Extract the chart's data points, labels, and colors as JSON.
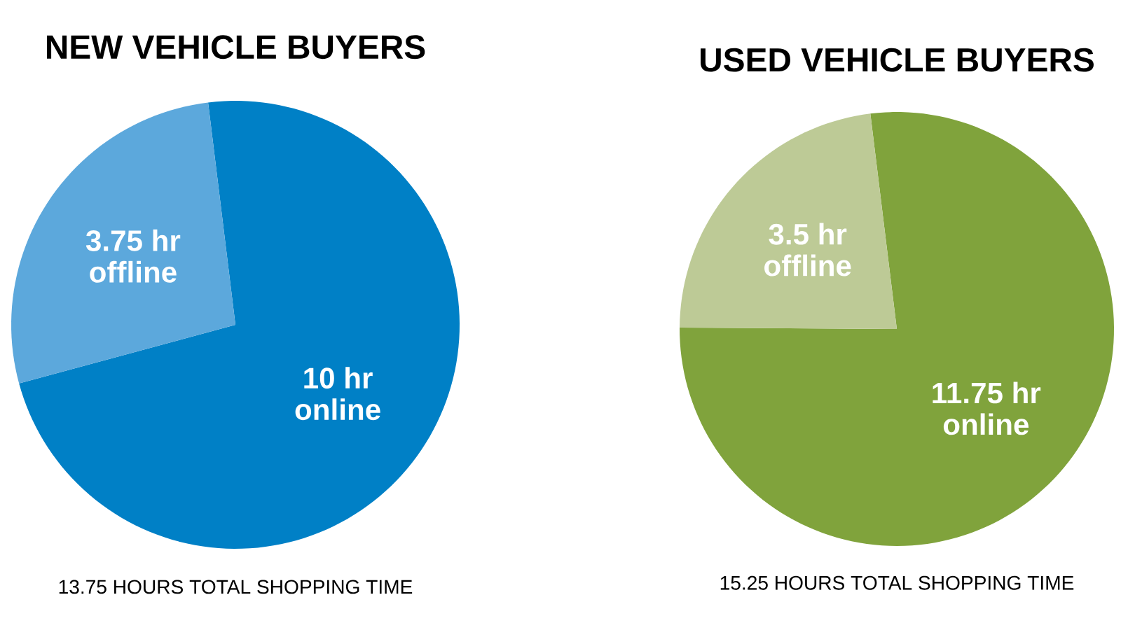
{
  "chart_data": [
    {
      "type": "pie",
      "title": "NEW VEHICLE BUYERS",
      "categories": [
        "online",
        "offline"
      ],
      "values": [
        10,
        3.75
      ],
      "value_labels": [
        "10 hr",
        "3.75 hr"
      ],
      "colors": [
        "#0080c6",
        "#5ca8dc"
      ],
      "annotations": [
        "13.75 HOURS TOTAL SHOPPING TIME"
      ]
    },
    {
      "type": "pie",
      "title": "USED VEHICLE BUYERS",
      "categories": [
        "online",
        "offline"
      ],
      "values": [
        11.75,
        3.5
      ],
      "value_labels": [
        "11.75 hr",
        "3.5 hr"
      ],
      "colors": [
        "#80a33c",
        "#bdca96"
      ],
      "annotations": [
        "15.25 HOURS TOTAL SHOPPING TIME"
      ]
    }
  ]
}
